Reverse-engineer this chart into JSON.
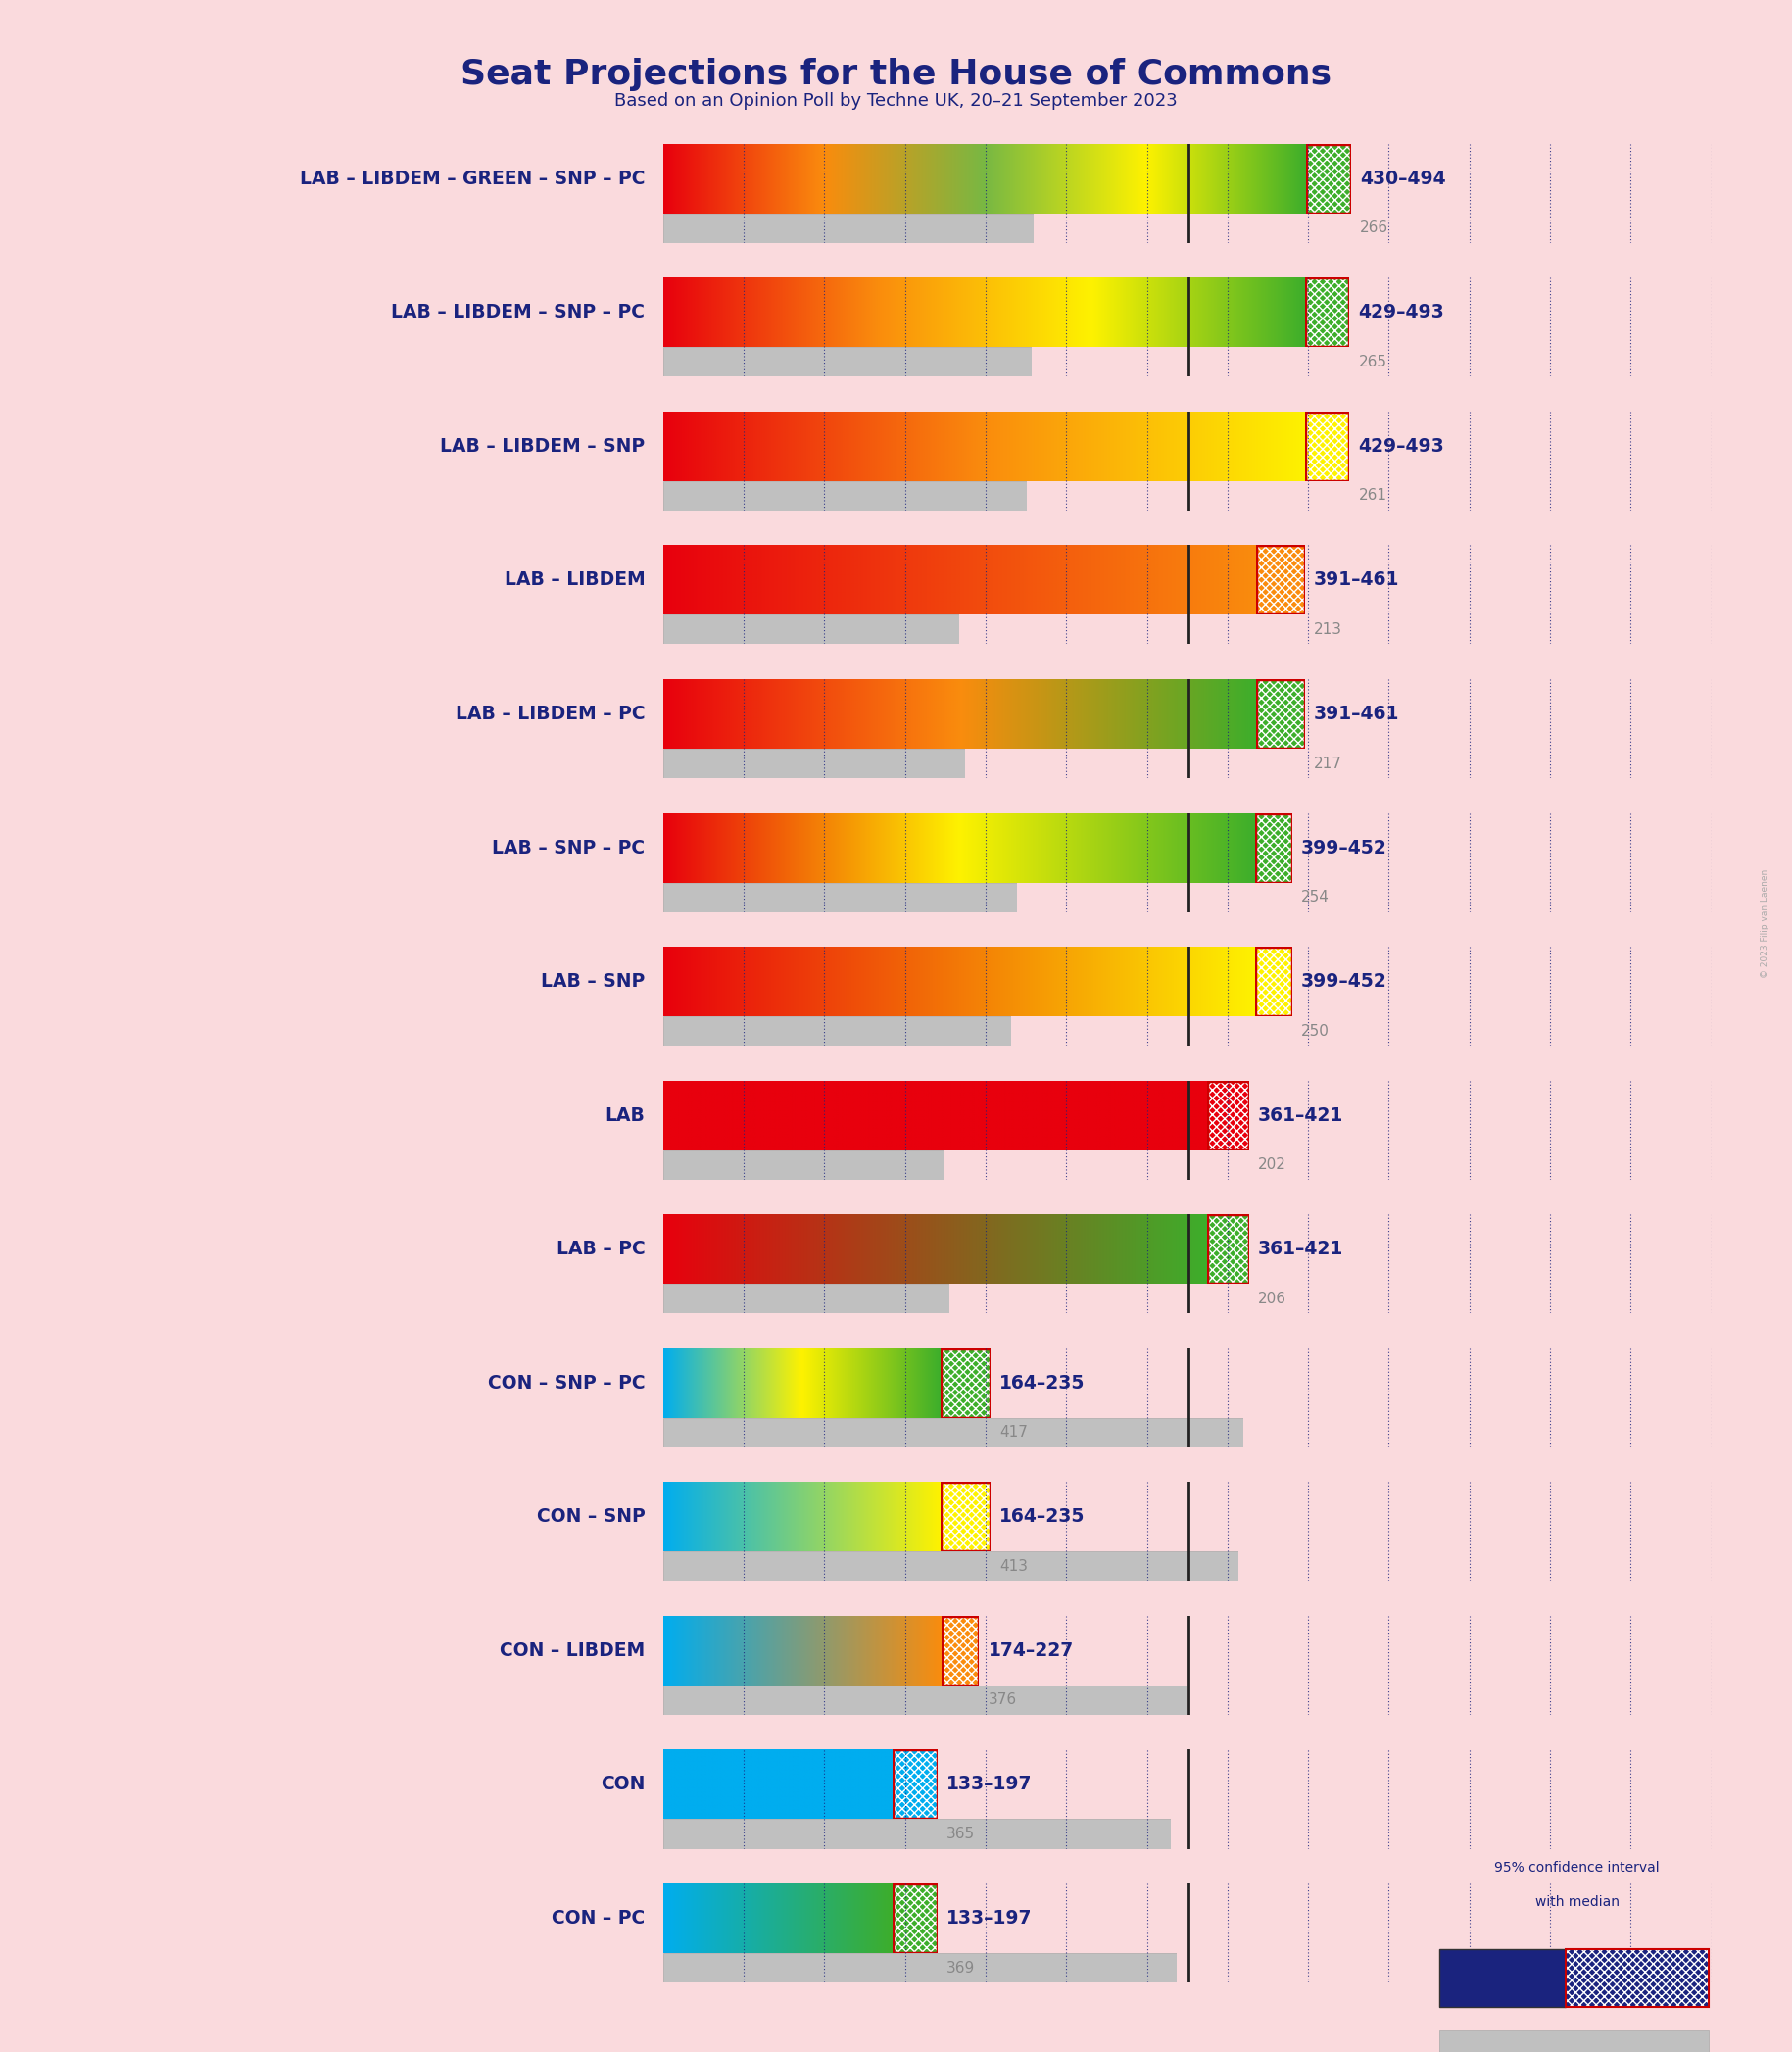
{
  "title": "Seat Projections for the House of Commons",
  "subtitle": "Based on an Opinion Poll by Techne UK, 20–21 September 2023",
  "background_color": "#fadadd",
  "title_color": "#1a237e",
  "subtitle_color": "#1a237e",
  "majority_line": 326,
  "total_seats": 650,
  "rows": [
    {
      "label": "LAB – LIBDEM – GREEN – SNP – PC",
      "low": 430,
      "high": 494,
      "median": 462,
      "last_result": 266,
      "parties": [
        "LAB",
        "LIBDEM",
        "GREEN",
        "SNP",
        "PC"
      ],
      "label_range": "430–494",
      "label_last": "266"
    },
    {
      "label": "LAB – LIBDEM – SNP – PC",
      "low": 429,
      "high": 493,
      "median": 461,
      "last_result": 265,
      "parties": [
        "LAB",
        "LIBDEM",
        "SNP",
        "PC"
      ],
      "label_range": "429–493",
      "label_last": "265"
    },
    {
      "label": "LAB – LIBDEM – SNP",
      "low": 429,
      "high": 493,
      "median": 461,
      "last_result": 261,
      "parties": [
        "LAB",
        "LIBDEM",
        "SNP"
      ],
      "label_range": "429–493",
      "label_last": "261"
    },
    {
      "label": "LAB – LIBDEM",
      "low": 391,
      "high": 461,
      "median": 426,
      "last_result": 213,
      "parties": [
        "LAB",
        "LIBDEM"
      ],
      "label_range": "391–461",
      "label_last": "213"
    },
    {
      "label": "LAB – LIBDEM – PC",
      "low": 391,
      "high": 461,
      "median": 426,
      "last_result": 217,
      "parties": [
        "LAB",
        "LIBDEM",
        "PC"
      ],
      "label_range": "391–461",
      "label_last": "217"
    },
    {
      "label": "LAB – SNP – PC",
      "low": 399,
      "high": 452,
      "median": 425,
      "last_result": 254,
      "parties": [
        "LAB",
        "SNP",
        "PC"
      ],
      "label_range": "399–452",
      "label_last": "254"
    },
    {
      "label": "LAB – SNP",
      "low": 399,
      "high": 452,
      "median": 425,
      "last_result": 250,
      "parties": [
        "LAB",
        "SNP"
      ],
      "label_range": "399–452",
      "label_last": "250"
    },
    {
      "label": "LAB",
      "low": 361,
      "high": 421,
      "median": 391,
      "last_result": 202,
      "parties": [
        "LAB"
      ],
      "label_range": "361–421",
      "label_last": "202"
    },
    {
      "label": "LAB – PC",
      "low": 361,
      "high": 421,
      "median": 391,
      "last_result": 206,
      "parties": [
        "LAB",
        "PC"
      ],
      "label_range": "361–421",
      "label_last": "206"
    },
    {
      "label": "CON – SNP – PC",
      "low": 164,
      "high": 235,
      "median": 199,
      "last_result": 417,
      "parties": [
        "CON",
        "SNP",
        "PC"
      ],
      "label_range": "164–235",
      "label_last": "417"
    },
    {
      "label": "CON – SNP",
      "low": 164,
      "high": 235,
      "median": 199,
      "last_result": 413,
      "parties": [
        "CON",
        "SNP"
      ],
      "label_range": "164–235",
      "label_last": "413"
    },
    {
      "label": "CON – LIBDEM",
      "low": 174,
      "high": 227,
      "median": 200,
      "last_result": 376,
      "parties": [
        "CON",
        "LIBDEM"
      ],
      "label_range": "174–227",
      "label_last": "376"
    },
    {
      "label": "CON",
      "low": 133,
      "high": 197,
      "median": 165,
      "last_result": 365,
      "parties": [
        "CON"
      ],
      "label_range": "133–197",
      "label_last": "365"
    },
    {
      "label": "CON – PC",
      "low": 133,
      "high": 197,
      "median": 165,
      "last_result": 369,
      "parties": [
        "CON",
        "PC"
      ],
      "label_range": "133–197",
      "label_last": "369"
    }
  ],
  "party_colors": {
    "LAB": "#e8000d",
    "LIBDEM": "#fa8c0d",
    "GREEN": "#78b843",
    "SNP": "#fef200",
    "PC": "#3dae2b",
    "CON": "#00adef"
  },
  "font_color_dark": "#1a237e",
  "font_color_light": "#888888",
  "copyright": "© 2023 Filip van Laenen"
}
